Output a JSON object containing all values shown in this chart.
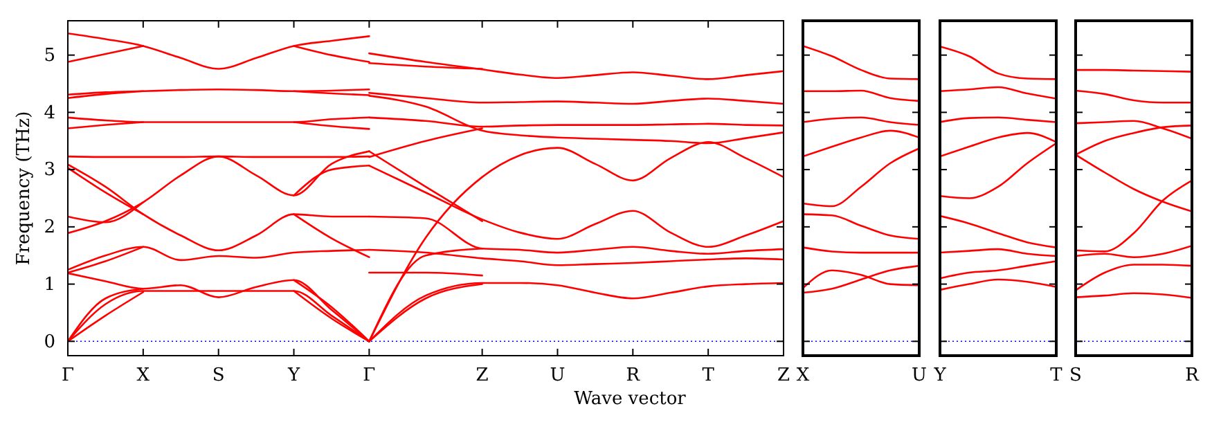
{
  "chart_data": [
    {
      "type": "line",
      "ylabel": "Frequency (THz)",
      "xlabel": "Wave vector",
      "ylim": [
        -0.25,
        5.6
      ],
      "categories": [
        "Γ",
        null,
        null,
        null,
        "X",
        null,
        null,
        null,
        "S",
        null,
        null,
        null,
        "Y",
        null,
        null,
        null,
        "Γ",
        null,
        null,
        null,
        null,
        null,
        "Z",
        null,
        null,
        null,
        "U",
        null,
        null,
        null,
        "R",
        null,
        null,
        null,
        "T",
        null,
        null,
        null,
        "Z"
      ],
      "yticks": [
        0,
        1,
        2,
        3,
        4,
        5
      ],
      "ref_lines": [
        {
          "axis": "y",
          "value": 0,
          "color": "#0000ff",
          "line_style": "dotted"
        }
      ],
      "series": [
        {
          "color": "#ff0000",
          "values": [
            5.38,
            null,
            5.28,
            null,
            5.16,
            null,
            4.95,
            null,
            4.76,
            null,
            4.95,
            null,
            5.16,
            null,
            5.25,
            null,
            5.33,
            null,
            null,
            null,
            null,
            null,
            null,
            null,
            null,
            null,
            null,
            null,
            null,
            null,
            null,
            null,
            null,
            null,
            null,
            null,
            null,
            null,
            null
          ]
        },
        {
          "color": "#ff0000",
          "values": [
            4.88,
            null,
            5.02,
            null,
            5.16,
            null,
            null,
            null,
            null,
            null,
            null,
            null,
            null,
            null,
            null,
            null,
            null,
            null,
            null,
            null,
            null,
            null,
            null,
            null,
            null,
            null,
            null,
            null,
            null,
            null,
            null,
            null,
            null,
            null,
            null,
            null,
            null,
            null,
            null
          ]
        },
        {
          "color": "#ff0000",
          "values": [
            null,
            null,
            null,
            null,
            null,
            null,
            null,
            null,
            null,
            null,
            null,
            null,
            5.16,
            null,
            5.0,
            null,
            4.88,
            null,
            null,
            null,
            null,
            null,
            null,
            null,
            null,
            null,
            null,
            null,
            null,
            null,
            null,
            null,
            null,
            null,
            null,
            null,
            null,
            null,
            null
          ]
        },
        {
          "color": "#ff0000",
          "values": [
            4.31,
            null,
            4.35,
            null,
            4.37,
            null,
            4.39,
            null,
            4.4,
            null,
            4.39,
            null,
            4.37,
            null,
            4.38,
            null,
            4.4,
            null,
            null,
            null,
            null,
            null,
            null,
            null,
            null,
            null,
            null,
            null,
            null,
            null,
            null,
            null,
            null,
            null,
            null,
            null,
            null,
            null,
            null
          ]
        },
        {
          "color": "#ff0000",
          "values": [
            4.25,
            null,
            4.32,
            null,
            4.37,
            null,
            null,
            null,
            null,
            null,
            null,
            null,
            null,
            null,
            null,
            null,
            null,
            null,
            null,
            null,
            null,
            null,
            null,
            null,
            null,
            null,
            null,
            null,
            null,
            null,
            null,
            null,
            null,
            null,
            null,
            null,
            null,
            null,
            null
          ]
        },
        {
          "color": "#ff0000",
          "values": [
            null,
            null,
            null,
            null,
            null,
            null,
            null,
            null,
            null,
            null,
            null,
            null,
            4.37,
            null,
            4.33,
            null,
            4.3,
            null,
            null,
            null,
            null,
            null,
            null,
            null,
            null,
            null,
            null,
            null,
            null,
            null,
            null,
            null,
            null,
            null,
            null,
            null,
            null,
            null,
            null
          ]
        },
        {
          "color": "#ff0000",
          "values": [
            3.91,
            null,
            3.86,
            null,
            3.83,
            null,
            3.83,
            null,
            3.83,
            null,
            3.83,
            null,
            3.83,
            null,
            3.88,
            null,
            3.91,
            null,
            null,
            null,
            null,
            null,
            null,
            null,
            null,
            null,
            null,
            null,
            null,
            null,
            null,
            null,
            null,
            null,
            null,
            null,
            null,
            null,
            null
          ]
        },
        {
          "color": "#ff0000",
          "values": [
            3.72,
            null,
            3.78,
            null,
            3.83,
            null,
            null,
            null,
            null,
            null,
            null,
            null,
            null,
            null,
            null,
            null,
            null,
            null,
            null,
            null,
            null,
            null,
            null,
            null,
            null,
            null,
            null,
            null,
            null,
            null,
            null,
            null,
            null,
            null,
            null,
            null,
            null,
            null,
            null
          ]
        },
        {
          "color": "#ff0000",
          "values": [
            null,
            null,
            null,
            null,
            null,
            null,
            null,
            null,
            null,
            null,
            null,
            null,
            3.83,
            null,
            3.76,
            null,
            3.71,
            null,
            null,
            null,
            null,
            null,
            null,
            null,
            null,
            null,
            null,
            null,
            null,
            null,
            null,
            null,
            null,
            null,
            null,
            null,
            null,
            null,
            null
          ]
        },
        {
          "color": "#ff0000",
          "values": [
            3.23,
            null,
            3.22,
            null,
            3.22,
            null,
            3.22,
            null,
            3.23,
            null,
            3.22,
            null,
            3.22,
            null,
            3.22,
            null,
            3.23,
            null,
            null,
            null,
            null,
            null,
            null,
            null,
            null,
            null,
            null,
            null,
            null,
            null,
            null,
            null,
            null,
            null,
            null,
            null,
            null,
            null,
            null
          ]
        },
        {
          "color": "#ff0000",
          "values": [
            1.89,
            null,
            2.1,
            null,
            2.43,
            null,
            2.9,
            null,
            3.23,
            null,
            2.9,
            null,
            2.55,
            null,
            3.1,
            null,
            3.32,
            null,
            null,
            null,
            null,
            null,
            null,
            null,
            null,
            null,
            null,
            null,
            null,
            null,
            null,
            null,
            null,
            null,
            null,
            null,
            null,
            null,
            null
          ]
        },
        {
          "color": "#ff0000",
          "values": [
            3.09,
            null,
            2.7,
            null,
            2.22,
            null,
            1.85,
            null,
            1.59,
            null,
            1.85,
            null,
            2.22,
            null,
            2.18,
            null,
            2.18,
            null,
            null,
            null,
            null,
            null,
            null,
            null,
            null,
            null,
            null,
            null,
            null,
            null,
            null,
            null,
            null,
            null,
            null,
            null,
            null,
            null,
            null
          ]
        },
        {
          "color": "#ff0000",
          "values": [
            3.03,
            null,
            2.6,
            null,
            2.22,
            null,
            null,
            null,
            null,
            null,
            null,
            null,
            null,
            null,
            null,
            null,
            null,
            null,
            null,
            null,
            null,
            null,
            null,
            null,
            null,
            null,
            null,
            null,
            null,
            null,
            null,
            null,
            null,
            null,
            null,
            null,
            null,
            null,
            null
          ]
        },
        {
          "color": "#ff0000",
          "values": [
            null,
            null,
            null,
            null,
            null,
            null,
            null,
            null,
            null,
            null,
            null,
            null,
            2.55,
            null,
            3.0,
            null,
            3.07,
            null,
            null,
            null,
            null,
            null,
            null,
            null,
            null,
            null,
            null,
            null,
            null,
            null,
            null,
            null,
            null,
            null,
            null,
            null,
            null,
            null,
            null
          ]
        },
        {
          "color": "#ff0000",
          "values": [
            2.18,
            null,
            2.08,
            null,
            2.43,
            null,
            null,
            null,
            null,
            null,
            null,
            null,
            null,
            null,
            null,
            null,
            null,
            null,
            null,
            null,
            null,
            null,
            null,
            null,
            null,
            null,
            null,
            null,
            null,
            null,
            null,
            null,
            null,
            null,
            null,
            null,
            null,
            null,
            null
          ]
        },
        {
          "color": "#ff0000",
          "values": [
            null,
            null,
            null,
            null,
            null,
            null,
            null,
            null,
            null,
            null,
            null,
            null,
            2.22,
            null,
            1.8,
            null,
            1.47,
            null,
            null,
            null,
            null,
            null,
            null,
            null,
            null,
            null,
            null,
            null,
            null,
            null,
            null,
            null,
            null,
            null,
            null,
            null,
            null,
            null,
            null
          ]
        },
        {
          "color": "#ff0000",
          "values": [
            1.25,
            null,
            1.5,
            null,
            1.65,
            null,
            1.42,
            null,
            1.49,
            null,
            1.46,
            null,
            1.55,
            null,
            1.58,
            null,
            1.6,
            null,
            null,
            null,
            null,
            null,
            null,
            null,
            null,
            null,
            null,
            null,
            null,
            null,
            null,
            null,
            null,
            null,
            null,
            null,
            null,
            null,
            null
          ]
        },
        {
          "color": "#ff0000",
          "values": [
            1.2,
            null,
            1.4,
            null,
            1.65,
            null,
            null,
            null,
            null,
            null,
            null,
            null,
            null,
            null,
            null,
            null,
            null,
            null,
            null,
            null,
            null,
            null,
            null,
            null,
            null,
            null,
            null,
            null,
            null,
            null,
            null,
            null,
            null,
            null,
            null,
            null,
            null,
            null,
            null
          ]
        },
        {
          "color": "#ff0000",
          "values": [
            1.19,
            null,
            1.05,
            null,
            0.92,
            null,
            0.98,
            null,
            0.77,
            null,
            0.95,
            null,
            1.07,
            null,
            0.55,
            null,
            0,
            null,
            null,
            null,
            null,
            null,
            null,
            null,
            null,
            null,
            null,
            null,
            null,
            null,
            null,
            null,
            null,
            null,
            null,
            null,
            null,
            null,
            null
          ]
        },
        {
          "color": "#ff0000",
          "values": [
            0,
            null,
            0.65,
            null,
            0.88,
            null,
            0.88,
            null,
            0.88,
            null,
            0.88,
            null,
            0.88,
            null,
            0.45,
            null,
            0,
            null,
            null,
            null,
            null,
            null,
            null,
            null,
            null,
            null,
            null,
            null,
            null,
            null,
            null,
            null,
            null,
            null,
            null,
            null,
            null,
            null,
            null
          ]
        },
        {
          "color": "#ff0000",
          "values": [
            0,
            null,
            0.45,
            null,
            0.86,
            null,
            null,
            null,
            null,
            null,
            null,
            null,
            null,
            null,
            null,
            null,
            null,
            null,
            null,
            null,
            null,
            null,
            null,
            null,
            null,
            null,
            null,
            null,
            null,
            null,
            null,
            null,
            null,
            null,
            null,
            null,
            null,
            null,
            null
          ]
        },
        {
          "color": "#ff0000",
          "values": [
            null,
            null,
            null,
            null,
            null,
            null,
            null,
            null,
            null,
            null,
            null,
            null,
            0.88,
            null,
            0.4,
            null,
            0,
            null,
            null,
            null,
            null,
            null,
            null,
            null,
            null,
            null,
            null,
            null,
            null,
            null,
            null,
            null,
            null,
            null,
            null,
            null,
            null,
            null,
            null
          ]
        },
        {
          "color": "#ff0000",
          "values": [
            0,
            null,
            0.75,
            null,
            0.92,
            null,
            null,
            null,
            null,
            null,
            null,
            null,
            null,
            null,
            null,
            null,
            null,
            null,
            null,
            null,
            null,
            null,
            null,
            null,
            null,
            null,
            null,
            null,
            null,
            null,
            null,
            null,
            null,
            null,
            null,
            null,
            null,
            null,
            null
          ]
        },
        {
          "color": "#ff0000",
          "values": [
            null,
            null,
            null,
            null,
            null,
            null,
            null,
            null,
            null,
            null,
            null,
            null,
            1.07,
            null,
            0.6,
            null,
            0,
            null,
            null,
            null,
            null,
            null,
            null,
            null,
            null,
            null,
            null,
            null,
            null,
            null,
            null,
            null,
            null,
            null,
            null,
            null,
            null,
            null,
            null
          ]
        },
        {
          "color": "#ff0000",
          "values": [
            null,
            null,
            null,
            null,
            null,
            null,
            null,
            null,
            null,
            null,
            null,
            null,
            null,
            null,
            null,
            null,
            5.03,
            null,
            null,
            4.88,
            null,
            null,
            4.75,
            null,
            4.66,
            null,
            4.6,
            null,
            4.65,
            null,
            4.7,
            null,
            4.64,
            null,
            4.58,
            null,
            4.65,
            null,
            4.72
          ]
        },
        {
          "color": "#ff0000",
          "values": [
            null,
            null,
            null,
            null,
            null,
            null,
            null,
            null,
            null,
            null,
            null,
            null,
            null,
            null,
            null,
            null,
            4.86,
            null,
            null,
            4.8,
            null,
            null,
            4.76,
            null,
            null,
            null,
            null,
            null,
            null,
            null,
            null,
            null,
            null,
            null,
            null,
            null,
            null,
            null,
            null
          ]
        },
        {
          "color": "#ff0000",
          "values": [
            null,
            null,
            null,
            null,
            null,
            null,
            null,
            null,
            null,
            null,
            null,
            null,
            null,
            null,
            null,
            null,
            4.34,
            null,
            null,
            4.25,
            null,
            null,
            4.17,
            null,
            4.18,
            null,
            4.19,
            null,
            4.17,
            null,
            4.15,
            null,
            4.2,
            null,
            4.24,
            null,
            4.2,
            null,
            4.15
          ]
        },
        {
          "color": "#ff0000",
          "values": [
            null,
            null,
            null,
            null,
            null,
            null,
            null,
            null,
            null,
            null,
            null,
            null,
            null,
            null,
            null,
            null,
            4.29,
            null,
            null,
            4.1,
            null,
            null,
            3.68,
            null,
            3.6,
            null,
            3.56,
            null,
            3.54,
            null,
            3.52,
            null,
            3.5,
            null,
            3.46,
            null,
            3.55,
            null,
            3.65
          ]
        },
        {
          "color": "#ff0000",
          "values": [
            null,
            null,
            null,
            null,
            null,
            null,
            null,
            null,
            null,
            null,
            null,
            null,
            null,
            null,
            null,
            null,
            3.91,
            null,
            null,
            3.85,
            null,
            null,
            3.75,
            null,
            3.77,
            null,
            3.78,
            null,
            3.78,
            null,
            3.78,
            null,
            3.79,
            null,
            3.8,
            null,
            3.78,
            null,
            3.77
          ]
        },
        {
          "color": "#ff0000",
          "values": [
            null,
            null,
            null,
            null,
            null,
            null,
            null,
            null,
            null,
            null,
            null,
            null,
            null,
            null,
            null,
            null,
            3.22,
            null,
            null,
            3.5,
            null,
            null,
            3.72,
            null,
            null,
            null,
            null,
            null,
            null,
            null,
            null,
            null,
            null,
            null,
            null,
            null,
            null,
            null,
            null
          ]
        },
        {
          "color": "#ff0000",
          "values": [
            null,
            null,
            null,
            null,
            null,
            null,
            null,
            null,
            null,
            null,
            null,
            null,
            null,
            null,
            null,
            null,
            0,
            null,
            null,
            1.81,
            null,
            null,
            2.87,
            null,
            3.25,
            null,
            3.38,
            null,
            3.1,
            null,
            2.81,
            null,
            3.2,
            null,
            3.48,
            null,
            3.2,
            null,
            2.87
          ]
        },
        {
          "color": "#ff0000",
          "values": [
            null,
            null,
            null,
            null,
            null,
            null,
            null,
            null,
            null,
            null,
            null,
            null,
            null,
            null,
            null,
            null,
            3.07,
            null,
            null,
            2.6,
            null,
            null,
            2.13,
            null,
            1.9,
            null,
            1.79,
            null,
            2.05,
            null,
            2.28,
            null,
            1.9,
            null,
            1.65,
            null,
            1.85,
            null,
            2.1
          ]
        },
        {
          "color": "#ff0000",
          "values": [
            null,
            null,
            null,
            null,
            null,
            null,
            null,
            null,
            null,
            null,
            null,
            null,
            null,
            null,
            null,
            null,
            3.32,
            null,
            null,
            2.7,
            null,
            null,
            2.1,
            null,
            null,
            null,
            null,
            null,
            null,
            null,
            null,
            null,
            null,
            null,
            null,
            null,
            null,
            null,
            null
          ]
        },
        {
          "color": "#ff0000",
          "values": [
            null,
            null,
            null,
            null,
            null,
            null,
            null,
            null,
            null,
            null,
            null,
            null,
            null,
            null,
            null,
            null,
            2.18,
            null,
            null,
            2.15,
            null,
            null,
            1.62,
            null,
            1.6,
            null,
            1.55,
            null,
            1.6,
            null,
            1.65,
            null,
            1.58,
            null,
            1.53,
            null,
            1.58,
            null,
            1.61
          ]
        },
        {
          "color": "#ff0000",
          "values": [
            null,
            null,
            null,
            null,
            null,
            null,
            null,
            null,
            null,
            null,
            null,
            null,
            null,
            null,
            null,
            null,
            1.6,
            null,
            null,
            1.55,
            null,
            null,
            1.45,
            null,
            1.4,
            null,
            1.33,
            null,
            1.35,
            null,
            1.37,
            null,
            1.4,
            null,
            1.43,
            null,
            1.45,
            null,
            1.43
          ]
        },
        {
          "color": "#ff0000",
          "values": [
            null,
            null,
            null,
            null,
            null,
            null,
            null,
            null,
            null,
            null,
            null,
            null,
            null,
            null,
            null,
            null,
            0,
            null,
            null,
            1.5,
            null,
            null,
            1.62,
            null,
            null,
            null,
            null,
            null,
            null,
            null,
            null,
            null,
            null,
            null,
            null,
            null,
            null,
            null,
            null
          ]
        },
        {
          "color": "#ff0000",
          "values": [
            null,
            null,
            null,
            null,
            null,
            null,
            null,
            null,
            null,
            null,
            null,
            null,
            null,
            null,
            null,
            null,
            1.2,
            null,
            null,
            1.2,
            null,
            null,
            1.15,
            null,
            null,
            null,
            null,
            null,
            null,
            null,
            null,
            null,
            null,
            null,
            null,
            null,
            null,
            null,
            null
          ]
        },
        {
          "color": "#ff0000",
          "values": [
            null,
            null,
            null,
            null,
            null,
            null,
            null,
            null,
            null,
            null,
            null,
            null,
            null,
            null,
            null,
            null,
            0,
            null,
            null,
            0.8,
            null,
            null,
            1.02,
            null,
            1.02,
            null,
            0.98,
            null,
            0.85,
            null,
            0.75,
            null,
            0.85,
            null,
            0.96,
            null,
            1.0,
            null,
            1.02
          ]
        },
        {
          "color": "#ff0000",
          "values": [
            null,
            null,
            null,
            null,
            null,
            null,
            null,
            null,
            null,
            null,
            null,
            null,
            null,
            null,
            null,
            null,
            0,
            null,
            null,
            0.75,
            null,
            null,
            1.0,
            null,
            null,
            null,
            null,
            null,
            null,
            null,
            null,
            null,
            null,
            null,
            null,
            null,
            null,
            null,
            null
          ]
        }
      ]
    },
    {
      "type": "line",
      "tick_labels": "x",
      "ylim": [
        -0.25,
        5.6
      ],
      "categories": [
        "X",
        null,
        null,
        null,
        "U"
      ],
      "yticks": [
        {
          "value": 0,
          "label": null
        },
        {
          "value": 1,
          "label": null
        },
        {
          "value": 2,
          "label": null
        },
        {
          "value": 3,
          "label": null
        },
        {
          "value": 4,
          "label": null
        },
        {
          "value": 5,
          "label": null
        }
      ],
      "ref_lines": [
        {
          "axis": "y",
          "value": 0,
          "color": "#0000ff",
          "line_style": "dotted"
        }
      ],
      "series": [
        {
          "color": "#ff0000",
          "values": [
            5.16,
            4.98,
            4.74,
            4.59,
            4.58
          ]
        },
        {
          "color": "#ff0000",
          "values": [
            4.37,
            4.37,
            4.38,
            4.25,
            4.2
          ]
        },
        {
          "color": "#ff0000",
          "values": [
            3.83,
            3.89,
            3.91,
            3.83,
            3.78
          ]
        },
        {
          "color": "#ff0000",
          "values": [
            3.23,
            3.4,
            3.56,
            3.68,
            3.56
          ]
        },
        {
          "color": "#ff0000",
          "values": [
            2.41,
            2.36,
            2.7,
            3.11,
            3.37
          ]
        },
        {
          "color": "#ff0000",
          "values": [
            2.22,
            2.2,
            2.02,
            1.85,
            1.79
          ]
        },
        {
          "color": "#ff0000",
          "values": [
            1.64,
            1.57,
            1.55,
            1.55,
            1.55
          ]
        },
        {
          "color": "#ff0000",
          "values": [
            0.93,
            1.24,
            1.16,
            1.0,
            0.98
          ]
        },
        {
          "color": "#ff0000",
          "values": [
            0.85,
            0.92,
            1.08,
            1.24,
            1.32
          ]
        }
      ]
    },
    {
      "type": "line",
      "tick_labels": "x",
      "ylim": [
        -0.25,
        5.6
      ],
      "categories": [
        "Y",
        null,
        null,
        null,
        "T"
      ],
      "yticks": [
        {
          "value": 0,
          "label": null
        },
        {
          "value": 1,
          "label": null
        },
        {
          "value": 2,
          "label": null
        },
        {
          "value": 3,
          "label": null
        },
        {
          "value": 4,
          "label": null
        },
        {
          "value": 5,
          "label": null
        }
      ],
      "ref_lines": [
        {
          "axis": "y",
          "value": 0,
          "color": "#0000ff",
          "line_style": "dotted"
        }
      ],
      "series": [
        {
          "color": "#ff0000",
          "values": [
            5.15,
            4.98,
            4.68,
            4.59,
            4.58
          ]
        },
        {
          "color": "#ff0000",
          "values": [
            4.37,
            4.4,
            4.44,
            4.33,
            4.24
          ]
        },
        {
          "color": "#ff0000",
          "values": [
            3.83,
            3.9,
            3.91,
            3.87,
            3.83
          ]
        },
        {
          "color": "#ff0000",
          "values": [
            3.23,
            3.4,
            3.56,
            3.64,
            3.48
          ]
        },
        {
          "color": "#ff0000",
          "values": [
            2.54,
            2.5,
            2.7,
            3.11,
            3.46
          ]
        },
        {
          "color": "#ff0000",
          "values": [
            2.19,
            2.06,
            1.89,
            1.73,
            1.64
          ]
        },
        {
          "color": "#ff0000",
          "values": [
            1.55,
            1.58,
            1.61,
            1.53,
            1.49
          ]
        },
        {
          "color": "#ff0000",
          "values": [
            1.1,
            1.2,
            1.24,
            1.32,
            1.4
          ]
        },
        {
          "color": "#ff0000",
          "values": [
            0.9,
            1.0,
            1.08,
            1.04,
            0.95
          ]
        }
      ]
    },
    {
      "type": "line",
      "tick_labels": "x",
      "ylim": [
        -0.25,
        5.6
      ],
      "categories": [
        "S",
        null,
        null,
        null,
        "R"
      ],
      "yticks": [
        {
          "value": 0,
          "label": null
        },
        {
          "value": 1,
          "label": null
        },
        {
          "value": 2,
          "label": null
        },
        {
          "value": 3,
          "label": null
        },
        {
          "value": 4,
          "label": null
        },
        {
          "value": 5,
          "label": null
        }
      ],
      "ref_lines": [
        {
          "axis": "y",
          "value": 0,
          "color": "#0000ff",
          "line_style": "dotted"
        }
      ],
      "series": [
        {
          "color": "#ff0000",
          "values": [
            4.74,
            4.74,
            4.73,
            4.72,
            4.71
          ]
        },
        {
          "color": "#ff0000",
          "values": [
            4.38,
            4.32,
            4.21,
            4.17,
            4.17
          ]
        },
        {
          "color": "#ff0000",
          "values": [
            3.81,
            3.83,
            3.85,
            3.72,
            3.54
          ]
        },
        {
          "color": "#ff0000",
          "values": [
            3.26,
            3.5,
            3.64,
            3.74,
            3.77
          ]
        },
        {
          "color": "#ff0000",
          "values": [
            3.26,
            2.95,
            2.66,
            2.44,
            2.27
          ]
        },
        {
          "color": "#ff0000",
          "values": [
            1.59,
            1.57,
            1.89,
            2.46,
            2.81
          ]
        },
        {
          "color": "#ff0000",
          "values": [
            1.49,
            1.53,
            1.47,
            1.53,
            1.67
          ]
        },
        {
          "color": "#ff0000",
          "values": [
            0.89,
            1.2,
            1.34,
            1.34,
            1.32
          ]
        },
        {
          "color": "#ff0000",
          "values": [
            0.77,
            0.8,
            0.84,
            0.82,
            0.76
          ]
        }
      ]
    }
  ]
}
